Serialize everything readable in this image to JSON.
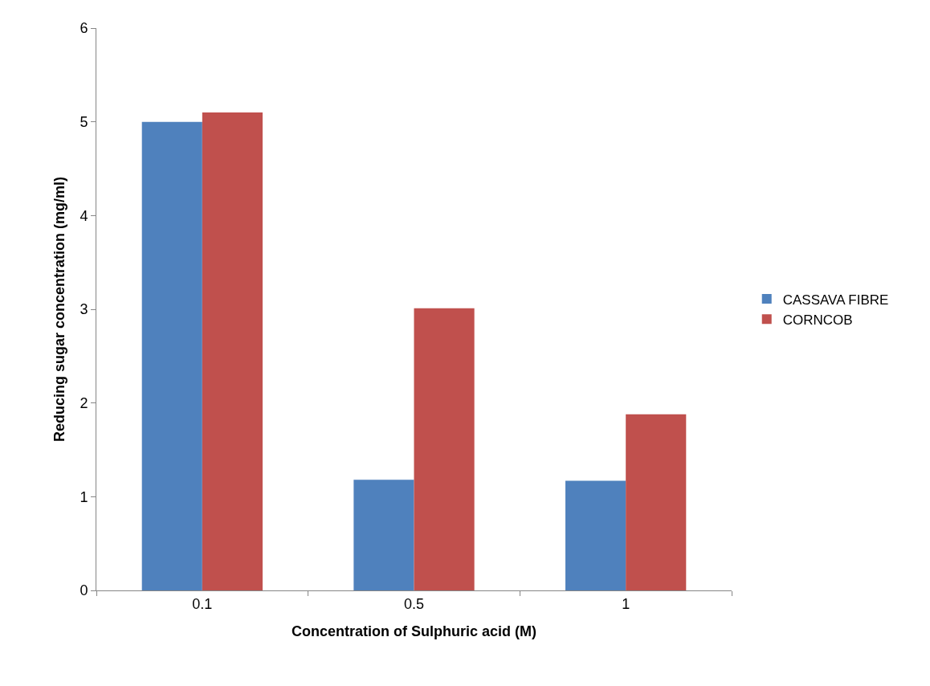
{
  "chart_data": {
    "type": "bar",
    "xlabel": "Concentration of Sulphuric acid (M)",
    "ylabel": "Reducing sugar concentration (mg/ml)",
    "categories": [
      "0.1",
      "0.5",
      "1"
    ],
    "series": [
      {
        "name": "CASSAVA FIBRE",
        "color": "#4f81bd",
        "values": [
          5.0,
          1.18,
          1.17
        ]
      },
      {
        "name": "CORNCOB",
        "color": "#c0504d",
        "values": [
          5.1,
          3.01,
          1.88
        ]
      }
    ],
    "ylim": [
      0,
      6
    ],
    "yticks": [
      0,
      1,
      2,
      3,
      4,
      5,
      6
    ],
    "grid": false,
    "legend": "right"
  }
}
